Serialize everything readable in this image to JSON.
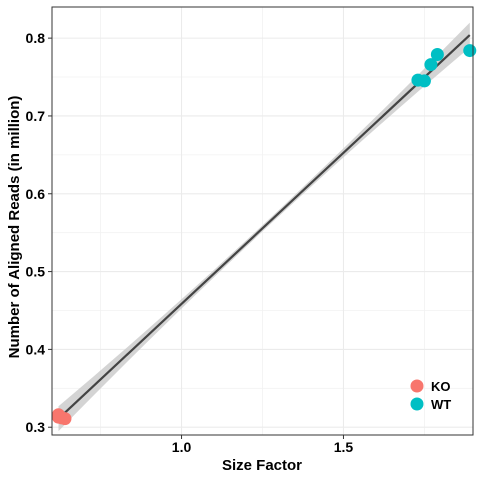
{
  "chart_data": {
    "type": "scatter",
    "xlabel": "Size Factor",
    "ylabel": "Number of Aligned Reads (in million)",
    "xlim": [
      0.6,
      1.9
    ],
    "ylim": [
      0.29,
      0.84
    ],
    "x_ticks": [
      1.0,
      1.5
    ],
    "x_tick_labels": [
      "1.0",
      "1.5"
    ],
    "y_ticks": [
      0.3,
      0.4,
      0.5,
      0.6,
      0.7,
      0.8
    ],
    "y_tick_labels": [
      "0.3",
      "0.4",
      "0.5",
      "0.6",
      "0.7",
      "0.8"
    ],
    "grid": true,
    "legend_position": "bottom-right",
    "series": [
      {
        "name": "KO",
        "color": "#F8766D",
        "points": [
          {
            "x": 0.62,
            "y": 0.316
          },
          {
            "x": 0.63,
            "y": 0.312
          },
          {
            "x": 0.64,
            "y": 0.311
          },
          {
            "x": 0.62,
            "y": 0.313
          }
        ]
      },
      {
        "name": "WT",
        "color": "#00BFC4",
        "points": [
          {
            "x": 1.73,
            "y": 0.746
          },
          {
            "x": 1.75,
            "y": 0.745
          },
          {
            "x": 1.77,
            "y": 0.766
          },
          {
            "x": 1.79,
            "y": 0.779
          },
          {
            "x": 1.89,
            "y": 0.784
          }
        ]
      }
    ],
    "fit_line": {
      "x": [
        0.62,
        1.89
      ],
      "y": [
        0.311,
        0.804
      ],
      "color": "#444444",
      "band_color": "#CCCCCC"
    }
  }
}
